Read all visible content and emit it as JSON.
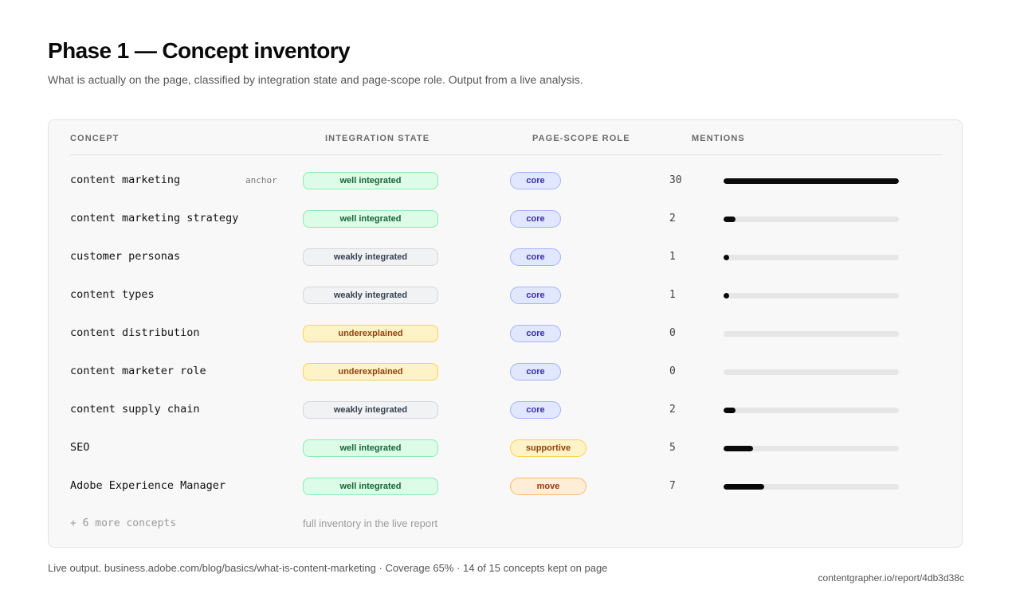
{
  "header": {
    "title": "Phase 1 — Concept inventory",
    "subtitle": "What is actually on the page, classified by integration state and page-scope role. Output from a live analysis."
  },
  "table": {
    "columns": [
      "CONCEPT",
      "INTEGRATION STATE",
      "PAGE-SCOPE ROLE",
      "MENTIONS"
    ],
    "max_mentions": 30,
    "rows": [
      {
        "concept": "content marketing",
        "tag": "anchor",
        "state": "well integrated",
        "state_kind": "well",
        "role": "core",
        "role_kind": "core",
        "mentions": 30
      },
      {
        "concept": "content marketing strategy",
        "tag": "",
        "state": "well integrated",
        "state_kind": "well",
        "role": "core",
        "role_kind": "core",
        "mentions": 2
      },
      {
        "concept": "customer personas",
        "tag": "",
        "state": "weakly integrated",
        "state_kind": "weak",
        "role": "core",
        "role_kind": "core",
        "mentions": 1
      },
      {
        "concept": "content types",
        "tag": "",
        "state": "weakly integrated",
        "state_kind": "weak",
        "role": "core",
        "role_kind": "core",
        "mentions": 1
      },
      {
        "concept": "content distribution",
        "tag": "",
        "state": "underexplained",
        "state_kind": "under",
        "role": "core",
        "role_kind": "core",
        "mentions": 0
      },
      {
        "concept": "content marketer role",
        "tag": "",
        "state": "underexplained",
        "state_kind": "under",
        "role": "core",
        "role_kind": "core",
        "mentions": 0
      },
      {
        "concept": "content supply chain",
        "tag": "",
        "state": "weakly integrated",
        "state_kind": "weak",
        "role": "core",
        "role_kind": "core",
        "mentions": 2
      },
      {
        "concept": "SEO",
        "tag": "",
        "state": "well integrated",
        "state_kind": "well",
        "role": "supportive",
        "role_kind": "supportive",
        "mentions": 5
      },
      {
        "concept": "Adobe Experience Manager",
        "tag": "",
        "state": "well integrated",
        "state_kind": "well",
        "role": "move",
        "role_kind": "move",
        "mentions": 7
      }
    ],
    "more_label": "+ 6 more concepts",
    "more_note": "full inventory in the live report"
  },
  "footer": {
    "left": "Live output. business.adobe.com/blog/basics/what-is-content-marketing · Coverage 65% · 14 of 15 concepts kept on page",
    "right": "contentgrapher.io/report/4db3d38c"
  }
}
